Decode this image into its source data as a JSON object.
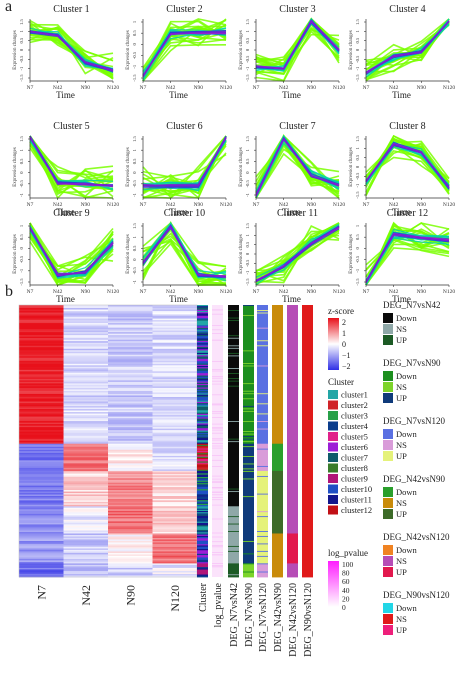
{
  "panel_a": {
    "label": "a"
  },
  "panel_b": {
    "label": "b"
  },
  "chart_data": [
    {
      "type": "line",
      "panel": "a",
      "x": [
        "N7",
        "N42",
        "N90",
        "N120"
      ],
      "xlabel": "Time",
      "ylabel": "Expression changes",
      "series_colors": [
        "#7aff00",
        "#00d4a8",
        "#2e3bd8",
        "#d01ec0"
      ],
      "clusters": [
        {
          "title": "Cluster 1",
          "ytick_labels": [
            "-1.5",
            "-1",
            "-0.5",
            "0",
            "0.5",
            "1",
            "1.5"
          ],
          "ylim": [
            -1.5,
            1.5
          ],
          "mean": [
            0.9,
            0.7,
            -0.6,
            -1.0
          ]
        },
        {
          "title": "Cluster 2",
          "ytick_labels": [
            "-1.5",
            "-1",
            "-0.5",
            "0",
            "0.5",
            "1"
          ],
          "ylim": [
            -1.5,
            1.0
          ],
          "mean": [
            -1.3,
            0.4,
            0.45,
            0.45
          ]
        },
        {
          "title": "Cluster 3",
          "ytick_labels": [
            "-1.5",
            "-1",
            "-0.5",
            "0",
            "0.5",
            "1",
            "1.5"
          ],
          "ylim": [
            -1.5,
            1.5
          ],
          "mean": [
            -0.8,
            -0.9,
            1.4,
            0.0
          ]
        },
        {
          "title": "Cluster 4",
          "ytick_labels": [
            "-1.5",
            "-1",
            "-0.5",
            "0",
            "0.5",
            "1",
            "1.5"
          ],
          "ylim": [
            -1.5,
            1.5
          ],
          "mean": [
            -1.1,
            -0.3,
            -0.1,
            1.4
          ]
        },
        {
          "title": "Cluster 5",
          "ytick_labels": [
            "-1",
            "-0.5",
            "0",
            "0.5",
            "1",
            "1.5"
          ],
          "ylim": [
            -1.0,
            1.5
          ],
          "mean": [
            1.45,
            -0.4,
            -0.45,
            -0.5
          ]
        },
        {
          "title": "Cluster 6",
          "ytick_labels": [
            "-1",
            "-0.5",
            "0",
            "0.5",
            "1",
            "1.5"
          ],
          "ylim": [
            -1.0,
            1.5
          ],
          "mean": [
            -0.5,
            -0.5,
            -0.5,
            1.45
          ]
        },
        {
          "title": "Cluster 7",
          "ytick_labels": [
            "-1",
            "-0.5",
            "0",
            "0.5",
            "1",
            "1.5"
          ],
          "ylim": [
            -1.0,
            1.5
          ],
          "mean": [
            -0.9,
            1.4,
            -0.1,
            -0.5
          ]
        },
        {
          "title": "Cluster 8",
          "ytick_labels": [
            "-1.5",
            "-1",
            "-0.5",
            "0",
            "0.5",
            "1",
            "1.5"
          ],
          "ylim": [
            -1.5,
            1.5
          ],
          "mean": [
            -0.7,
            1.1,
            0.7,
            -1.0
          ]
        },
        {
          "title": "Cluster 9",
          "ytick_labels": [
            "-1.5",
            "-1",
            "-0.5",
            "0",
            "0.5",
            "1"
          ],
          "ylim": [
            -1.5,
            1.0
          ],
          "mean": [
            0.8,
            -1.1,
            -1.0,
            0.2
          ]
        },
        {
          "title": "Cluster 10",
          "ytick_labels": [
            "-1",
            "-0.5",
            "0",
            "0.5",
            "1",
            "1.5"
          ],
          "ylim": [
            -1.0,
            1.5
          ],
          "mean": [
            -0.1,
            1.35,
            -0.6,
            -0.65
          ]
        },
        {
          "title": "Cluster 11",
          "ytick_labels": [
            "-1.5",
            "-1",
            "-0.5",
            "0",
            "0.5",
            "1",
            "1.5"
          ],
          "ylim": [
            -1.5,
            1.5
          ],
          "mean": [
            -1.3,
            -0.6,
            0.5,
            1.3
          ]
        },
        {
          "title": "Cluster 12",
          "ytick_labels": [
            "-1.5",
            "-1",
            "-0.5",
            "0",
            "0.5",
            "1"
          ],
          "ylim": [
            -1.5,
            1.0
          ],
          "mean": [
            -1.4,
            0.55,
            0.4,
            0.3
          ]
        }
      ]
    },
    {
      "type": "heatmap",
      "panel": "b",
      "columns": [
        "N7",
        "N42",
        "N90",
        "N120"
      ],
      "annotation_columns": [
        "Cluster",
        "log_pvalue",
        "DEG_N7vsN42",
        "DEG_N7vsN90",
        "DEG_N7vsN120",
        "DEG_N42vsN90",
        "DEG_N42vsN120",
        "DEG_N90vsN120"
      ],
      "blocks": [
        {
          "fraction": 0.51,
          "z": [
            1.9,
            -0.4,
            -0.5,
            -0.35
          ]
        },
        {
          "fraction": 0.1,
          "z": [
            -1.3,
            1.2,
            0.1,
            -0.3
          ]
        },
        {
          "fraction": 0.13,
          "z": [
            -1.2,
            0.4,
            1.0,
            0.3
          ]
        },
        {
          "fraction": 0.1,
          "z": [
            -1.1,
            -0.2,
            1.2,
            0.4
          ]
        },
        {
          "fraction": 0.11,
          "z": [
            -1.0,
            -0.5,
            0.1,
            1.2
          ]
        },
        {
          "fraction": 0.05,
          "z": [
            -1.4,
            -0.6,
            -0.5,
            -0.2
          ]
        }
      ],
      "legend_zscore": {
        "title": "z-score",
        "ticks": [
          "2",
          "1",
          "0",
          "−1",
          "−2"
        ],
        "colors": [
          "#e8101a",
          "#ffffff",
          "#2f2fe6"
        ]
      },
      "legend_cluster": {
        "title": "Cluster",
        "items": [
          {
            "label": "cluster1",
            "color": "#23a6a6"
          },
          {
            "label": "cluster2",
            "color": "#d02328"
          },
          {
            "label": "cluster3",
            "color": "#27a048"
          },
          {
            "label": "cluster4",
            "color": "#0b3d8c"
          },
          {
            "label": "cluster5",
            "color": "#e0218a"
          },
          {
            "label": "cluster6",
            "color": "#9c1ed6"
          },
          {
            "label": "cluster7",
            "color": "#0f5b6b"
          },
          {
            "label": "cluster8",
            "color": "#3a7d2b"
          },
          {
            "label": "cluster9",
            "color": "#b01678"
          },
          {
            "label": "cluster10",
            "color": "#1f4fc4"
          },
          {
            "label": "cluster11",
            "color": "#12168c"
          },
          {
            "label": "cluster12",
            "color": "#c11016"
          }
        ]
      },
      "legend_log_pvalue": {
        "title": "log_pvalue",
        "ticks": [
          "100",
          "80",
          "60",
          "40",
          "20",
          "0"
        ],
        "colors": [
          "#ff1eff",
          "#ffffff"
        ]
      },
      "legend_deg": [
        {
          "title": "DEG_N7vsN42",
          "items": [
            {
              "label": "Down",
              "color": "#0a0a0a"
            },
            {
              "label": "NS",
              "color": "#8fa8a8"
            },
            {
              "label": "UP",
              "color": "#1c5a25"
            }
          ]
        },
        {
          "title": "DEG_N7vsN90",
          "items": [
            {
              "label": "Down",
              "color": "#1c8f1f"
            },
            {
              "label": "NS",
              "color": "#7dd42b"
            },
            {
              "label": "UP",
              "color": "#0f3a7a"
            }
          ]
        },
        {
          "title": "DEG_N7vsN120",
          "items": [
            {
              "label": "Down",
              "color": "#5a70e2"
            },
            {
              "label": "NS",
              "color": "#d99cd9"
            },
            {
              "label": "UP",
              "color": "#e5f27a"
            }
          ]
        },
        {
          "title": "DEG_N42vsN90",
          "items": [
            {
              "label": "Down",
              "color": "#2a9f2c"
            },
            {
              "label": "NS",
              "color": "#c98b0a"
            },
            {
              "label": "UP",
              "color": "#3d6b28"
            }
          ]
        },
        {
          "title": "DEG_N42vsN120",
          "items": [
            {
              "label": "Down",
              "color": "#f08322"
            },
            {
              "label": "NS",
              "color": "#b64db6"
            },
            {
              "label": "UP",
              "color": "#e2184d"
            }
          ]
        },
        {
          "title": "DEG_N90vsN120",
          "items": [
            {
              "label": "Down",
              "color": "#22d6e6"
            },
            {
              "label": "NS",
              "color": "#e01a1a"
            },
            {
              "label": "UP",
              "color": "#ee1f7a"
            }
          ]
        }
      ]
    }
  ]
}
